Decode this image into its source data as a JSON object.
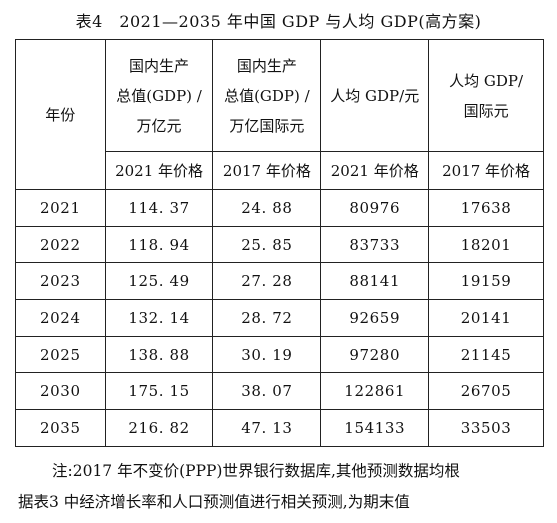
{
  "title": "表4　2021—2035 年中国 GDP 与人均 GDP(高方案)",
  "header": {
    "year": "年份",
    "col1": [
      "国内生产",
      "总值(GDP) /",
      "万亿元"
    ],
    "col2": [
      "国内生产",
      "总值(GDP) /",
      "万亿国际元"
    ],
    "col3": "人均 GDP/元",
    "col4": [
      "人均 GDP/",
      "国际元"
    ],
    "sub1": "2021 年价格",
    "sub2": "2017 年价格",
    "sub3": "2021 年价格",
    "sub4": "2017 年价格"
  },
  "rows": [
    {
      "year": "2021",
      "gdp_cny": "114. 37",
      "gdp_intl": "24. 88",
      "pc_cny": "80976",
      "pc_intl": "17638"
    },
    {
      "year": "2022",
      "gdp_cny": "118. 94",
      "gdp_intl": "25. 85",
      "pc_cny": "83733",
      "pc_intl": "18201"
    },
    {
      "year": "2023",
      "gdp_cny": "125. 49",
      "gdp_intl": "27. 28",
      "pc_cny": "88141",
      "pc_intl": "19159"
    },
    {
      "year": "2024",
      "gdp_cny": "132. 14",
      "gdp_intl": "28. 72",
      "pc_cny": "92659",
      "pc_intl": "20141"
    },
    {
      "year": "2025",
      "gdp_cny": "138. 88",
      "gdp_intl": "30. 19",
      "pc_cny": "97280",
      "pc_intl": "21145"
    },
    {
      "year": "2030",
      "gdp_cny": "175. 15",
      "gdp_intl": "38. 07",
      "pc_cny": "122861",
      "pc_intl": "26705"
    },
    {
      "year": "2035",
      "gdp_cny": "216. 82",
      "gdp_intl": "47. 13",
      "pc_cny": "154133",
      "pc_intl": "33503"
    }
  ],
  "note": {
    "line1": "注:2017 年不变价(PPP)世界银行数据库,其他预测数据均根",
    "line2": "据表3 中经济增长率和人口预测值进行相关预测,为期末值"
  }
}
